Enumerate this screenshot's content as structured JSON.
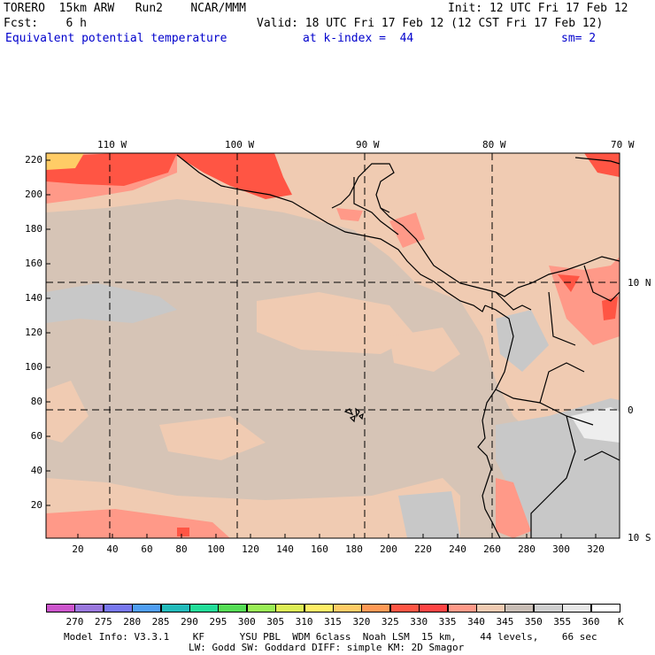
{
  "header": {
    "model": "TORERO  15km ARW   Run2    NCAR/MMM",
    "init": "Init: 12 UTC Fri 17 Feb 12",
    "fcst": "Fcst:    6 h",
    "valid": "Valid: 18 UTC Fri 17 Feb 12 (12 CST Fri 17 Feb 12)",
    "field": "Equivalent potential temperature",
    "level": "at k-index =  44",
    "smooth": "sm= 2"
  },
  "map": {
    "lon_labels": [
      "110 W",
      "100 W",
      "90 W",
      "80 W",
      "70 W"
    ],
    "lat_labels": [
      "10 N",
      "0",
      "10 S"
    ],
    "y_ticks": [
      "220",
      "200",
      "180",
      "160",
      "140",
      "120",
      "100",
      "80",
      "60",
      "40",
      "20"
    ],
    "x_ticks": [
      "20",
      "40",
      "60",
      "80",
      "100",
      "120",
      "140",
      "160",
      "180",
      "200",
      "220",
      "240",
      "260",
      "280",
      "300",
      "320"
    ]
  },
  "colorbar": {
    "labels": [
      "270",
      "275",
      "280",
      "285",
      "290",
      "295",
      "300",
      "305",
      "310",
      "315",
      "320",
      "325",
      "330",
      "335",
      "340",
      "345",
      "350",
      "355",
      "360"
    ],
    "unit": "K",
    "colors": [
      "#cc55cc",
      "#9977dd",
      "#7777ee",
      "#4f9ef2",
      "#22bbbb",
      "#22dd99",
      "#55dd55",
      "#99ee55",
      "#ddee55",
      "#ffee66",
      "#ffcc66",
      "#ff9955",
      "#ff5544",
      "#ff4444",
      "#ff9988",
      "#f0cbb2",
      "#c8bdb5",
      "#cfcfcf",
      "#e8e8e8",
      "#ffffff"
    ]
  },
  "footer": {
    "line1": "Model Info: V3.3.1    KF      YSU PBL  WDM 6class  Noah LSM  15 km,    44 levels,    66 sec",
    "line2": "LW: Godd SW: Goddard DIFF: simple KM: 2D Smagor"
  }
}
